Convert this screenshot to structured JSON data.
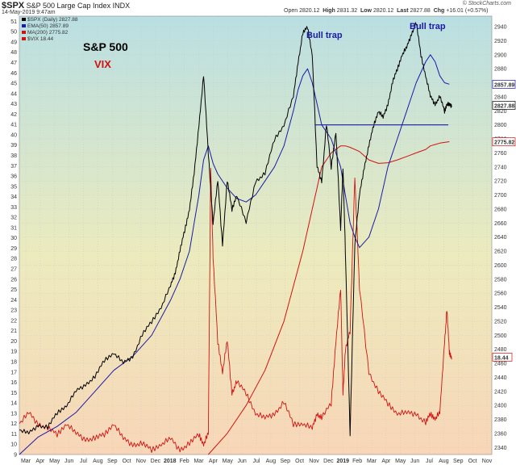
{
  "header": {
    "symbol": "$SPX",
    "name": "S&P 500 Large Cap Index",
    "exchange": "INDX",
    "date": "14-May-2019 9:47am",
    "open_label": "Open",
    "open": "2820.12",
    "high_label": "High",
    "high": "2831.32",
    "low_label": "Low",
    "low": "2820.12",
    "last_label": "Last",
    "last": "2827.88",
    "chg_label": "Chg",
    "chg": "+16.01 (+0.57%)",
    "credit": "© StockCharts.com"
  },
  "legend": [
    {
      "text": "$SPX (Daily) 2827.88",
      "color": "#000000"
    },
    {
      "text": "EMA(50) 2857.89",
      "color": "#1a1aa6"
    },
    {
      "text": "MA(200) 2775.82",
      "color": "#d11111"
    },
    {
      "text": "$VIX 18.44",
      "color": "#d11111"
    }
  ],
  "annotations": {
    "sp500": "S&P 500",
    "vix": "VIX",
    "bull_trap_1": "Bull trap",
    "bull_trap_2": "Bull trap"
  },
  "chart_data": {
    "type": "line",
    "title": "$SPX S&P 500 Large Cap Index",
    "x_ticks": [
      "Mar",
      "Apr",
      "May",
      "Jun",
      "Jul",
      "Aug",
      "Sep",
      "Oct",
      "Nov",
      "Dec",
      "2018",
      "Feb",
      "Mar",
      "Apr",
      "May",
      "Jun",
      "Jul",
      "Aug",
      "Sep",
      "Oct",
      "Nov",
      "Dec",
      "2019",
      "Feb",
      "Mar",
      "Apr",
      "May",
      "Jun",
      "Jul",
      "Aug",
      "Sep",
      "Oct",
      "Nov"
    ],
    "y_left_ticks": [
      9,
      10,
      11,
      12,
      13,
      14,
      15,
      16,
      17,
      18,
      19,
      20,
      21,
      22,
      23,
      24,
      25,
      26,
      27,
      28,
      29,
      30,
      31,
      32,
      33,
      34,
      35,
      36,
      37,
      38,
      39,
      40,
      41,
      42,
      43,
      44,
      45,
      46,
      47,
      48,
      49,
      50,
      51
    ],
    "y_left_range": [
      9,
      51.5
    ],
    "y_right_ticks": [
      2340,
      2360,
      2380,
      2400,
      2420,
      2440,
      2460,
      2480,
      2500,
      2520,
      2540,
      2560,
      2580,
      2600,
      2620,
      2640,
      2660,
      2680,
      2700,
      2720,
      2740,
      2760,
      2780,
      2800,
      2820,
      2840,
      2860,
      2880,
      2900,
      2920,
      2940
    ],
    "y_right_range": [
      2330,
      2955
    ],
    "right_labels": [
      {
        "value": 2857.89,
        "text": "2857.89",
        "color": "#1a1aa6"
      },
      {
        "value": 2827.88,
        "text": "2827.88",
        "color": "#000000"
      },
      {
        "value": 2775.82,
        "text": "2775.82",
        "color": "#d11111"
      }
    ],
    "vix_label": {
      "value": 18.44,
      "text": "18.44"
    },
    "horizontal_line": {
      "y": 2800,
      "x_start": 0.625,
      "x_end": 0.908
    },
    "series": [
      {
        "name": "$SPX (Daily)",
        "color": "#000000",
        "x": [
          0,
          0.02,
          0.04,
          0.06,
          0.08,
          0.1,
          0.12,
          0.14,
          0.16,
          0.18,
          0.2,
          0.22,
          0.24,
          0.26,
          0.28,
          0.3,
          0.32,
          0.33,
          0.34,
          0.35,
          0.36,
          0.37,
          0.38,
          0.39,
          0.4,
          0.41,
          0.42,
          0.43,
          0.44,
          0.45,
          0.46,
          0.48,
          0.5,
          0.52,
          0.54,
          0.56,
          0.58,
          0.59,
          0.6,
          0.61,
          0.62,
          0.63,
          0.64,
          0.65,
          0.66,
          0.67,
          0.68,
          0.685,
          0.69,
          0.7,
          0.71,
          0.72,
          0.73,
          0.74,
          0.75,
          0.76,
          0.77,
          0.78,
          0.79,
          0.8,
          0.81,
          0.82,
          0.83,
          0.84,
          0.85,
          0.86,
          0.87,
          0.88,
          0.89,
          0.9,
          0.905,
          0.91,
          0.915
        ],
        "values": [
          2365,
          2360,
          2372,
          2368,
          2390,
          2400,
          2420,
          2430,
          2440,
          2465,
          2475,
          2460,
          2470,
          2500,
          2520,
          2540,
          2570,
          2590,
          2620,
          2650,
          2680,
          2730,
          2800,
          2870,
          2760,
          2660,
          2720,
          2630,
          2720,
          2680,
          2700,
          2660,
          2720,
          2730,
          2780,
          2800,
          2840,
          2890,
          2930,
          2940,
          2900,
          2740,
          2720,
          2800,
          2740,
          2790,
          2650,
          2740,
          2620,
          2360,
          2630,
          2700,
          2740,
          2770,
          2800,
          2820,
          2810,
          2830,
          2860,
          2880,
          2900,
          2910,
          2930,
          2945,
          2900,
          2870,
          2840,
          2830,
          2840,
          2820,
          2830,
          2828,
          2828
        ]
      },
      {
        "name": "EMA(50)",
        "color": "#1a1aa6",
        "x": [
          0,
          0.04,
          0.08,
          0.12,
          0.16,
          0.2,
          0.24,
          0.28,
          0.32,
          0.34,
          0.36,
          0.37,
          0.38,
          0.39,
          0.4,
          0.41,
          0.42,
          0.44,
          0.46,
          0.48,
          0.5,
          0.52,
          0.54,
          0.56,
          0.58,
          0.59,
          0.6,
          0.61,
          0.62,
          0.63,
          0.64,
          0.66,
          0.67,
          0.68,
          0.69,
          0.7,
          0.71,
          0.72,
          0.74,
          0.76,
          0.78,
          0.8,
          0.82,
          0.84,
          0.86,
          0.87,
          0.88,
          0.89,
          0.9,
          0.91
        ],
        "values": [
          2330,
          2355,
          2370,
          2390,
          2420,
          2450,
          2470,
          2500,
          2550,
          2580,
          2620,
          2660,
          2700,
          2750,
          2770,
          2745,
          2730,
          2710,
          2695,
          2690,
          2700,
          2720,
          2740,
          2770,
          2820,
          2850,
          2870,
          2880,
          2860,
          2830,
          2800,
          2780,
          2760,
          2740,
          2700,
          2660,
          2640,
          2625,
          2640,
          2680,
          2740,
          2780,
          2820,
          2860,
          2890,
          2900,
          2890,
          2870,
          2860,
          2858
        ]
      },
      {
        "name": "MA(200)",
        "color": "#d11111",
        "x": [
          0.4,
          0.44,
          0.48,
          0.52,
          0.56,
          0.58,
          0.6,
          0.62,
          0.63,
          0.64,
          0.66,
          0.68,
          0.69,
          0.7,
          0.72,
          0.74,
          0.76,
          0.78,
          0.8,
          0.82,
          0.84,
          0.86,
          0.87,
          0.88,
          0.89,
          0.9,
          0.91
        ],
        "values": [
          2330,
          2360,
          2400,
          2450,
          2520,
          2570,
          2620,
          2680,
          2710,
          2740,
          2760,
          2770,
          2770,
          2768,
          2762,
          2750,
          2745,
          2746,
          2750,
          2755,
          2760,
          2765,
          2770,
          2772,
          2774,
          2775,
          2776
        ]
      },
      {
        "name": "$VIX",
        "color": "#d11111",
        "x": [
          0,
          0.02,
          0.04,
          0.06,
          0.08,
          0.1,
          0.12,
          0.14,
          0.16,
          0.18,
          0.2,
          0.22,
          0.24,
          0.26,
          0.28,
          0.3,
          0.32,
          0.34,
          0.36,
          0.38,
          0.39,
          0.4,
          0.405,
          0.41,
          0.42,
          0.43,
          0.44,
          0.45,
          0.46,
          0.48,
          0.5,
          0.52,
          0.54,
          0.56,
          0.58,
          0.6,
          0.62,
          0.63,
          0.64,
          0.66,
          0.67,
          0.68,
          0.685,
          0.69,
          0.7,
          0.71,
          0.72,
          0.74,
          0.76,
          0.78,
          0.8,
          0.82,
          0.84,
          0.86,
          0.87,
          0.88,
          0.89,
          0.9,
          0.905,
          0.91,
          0.915
        ],
        "values": [
          12,
          13,
          12,
          11.5,
          11,
          12,
          11,
          10.5,
          10.5,
          11,
          12,
          10.5,
          10,
          10,
          9.5,
          10,
          10.5,
          9.5,
          10,
          11,
          10,
          11,
          37,
          28,
          20,
          17,
          20,
          15,
          16,
          15,
          13,
          12.5,
          13,
          14,
          12,
          12,
          11.5,
          13,
          12.5,
          14,
          20,
          25,
          15,
          19,
          21,
          36,
          25,
          17,
          15,
          14,
          13,
          13,
          13,
          12,
          13,
          12.5,
          13,
          20,
          23,
          19,
          18.4
        ]
      }
    ],
    "grid": true
  }
}
